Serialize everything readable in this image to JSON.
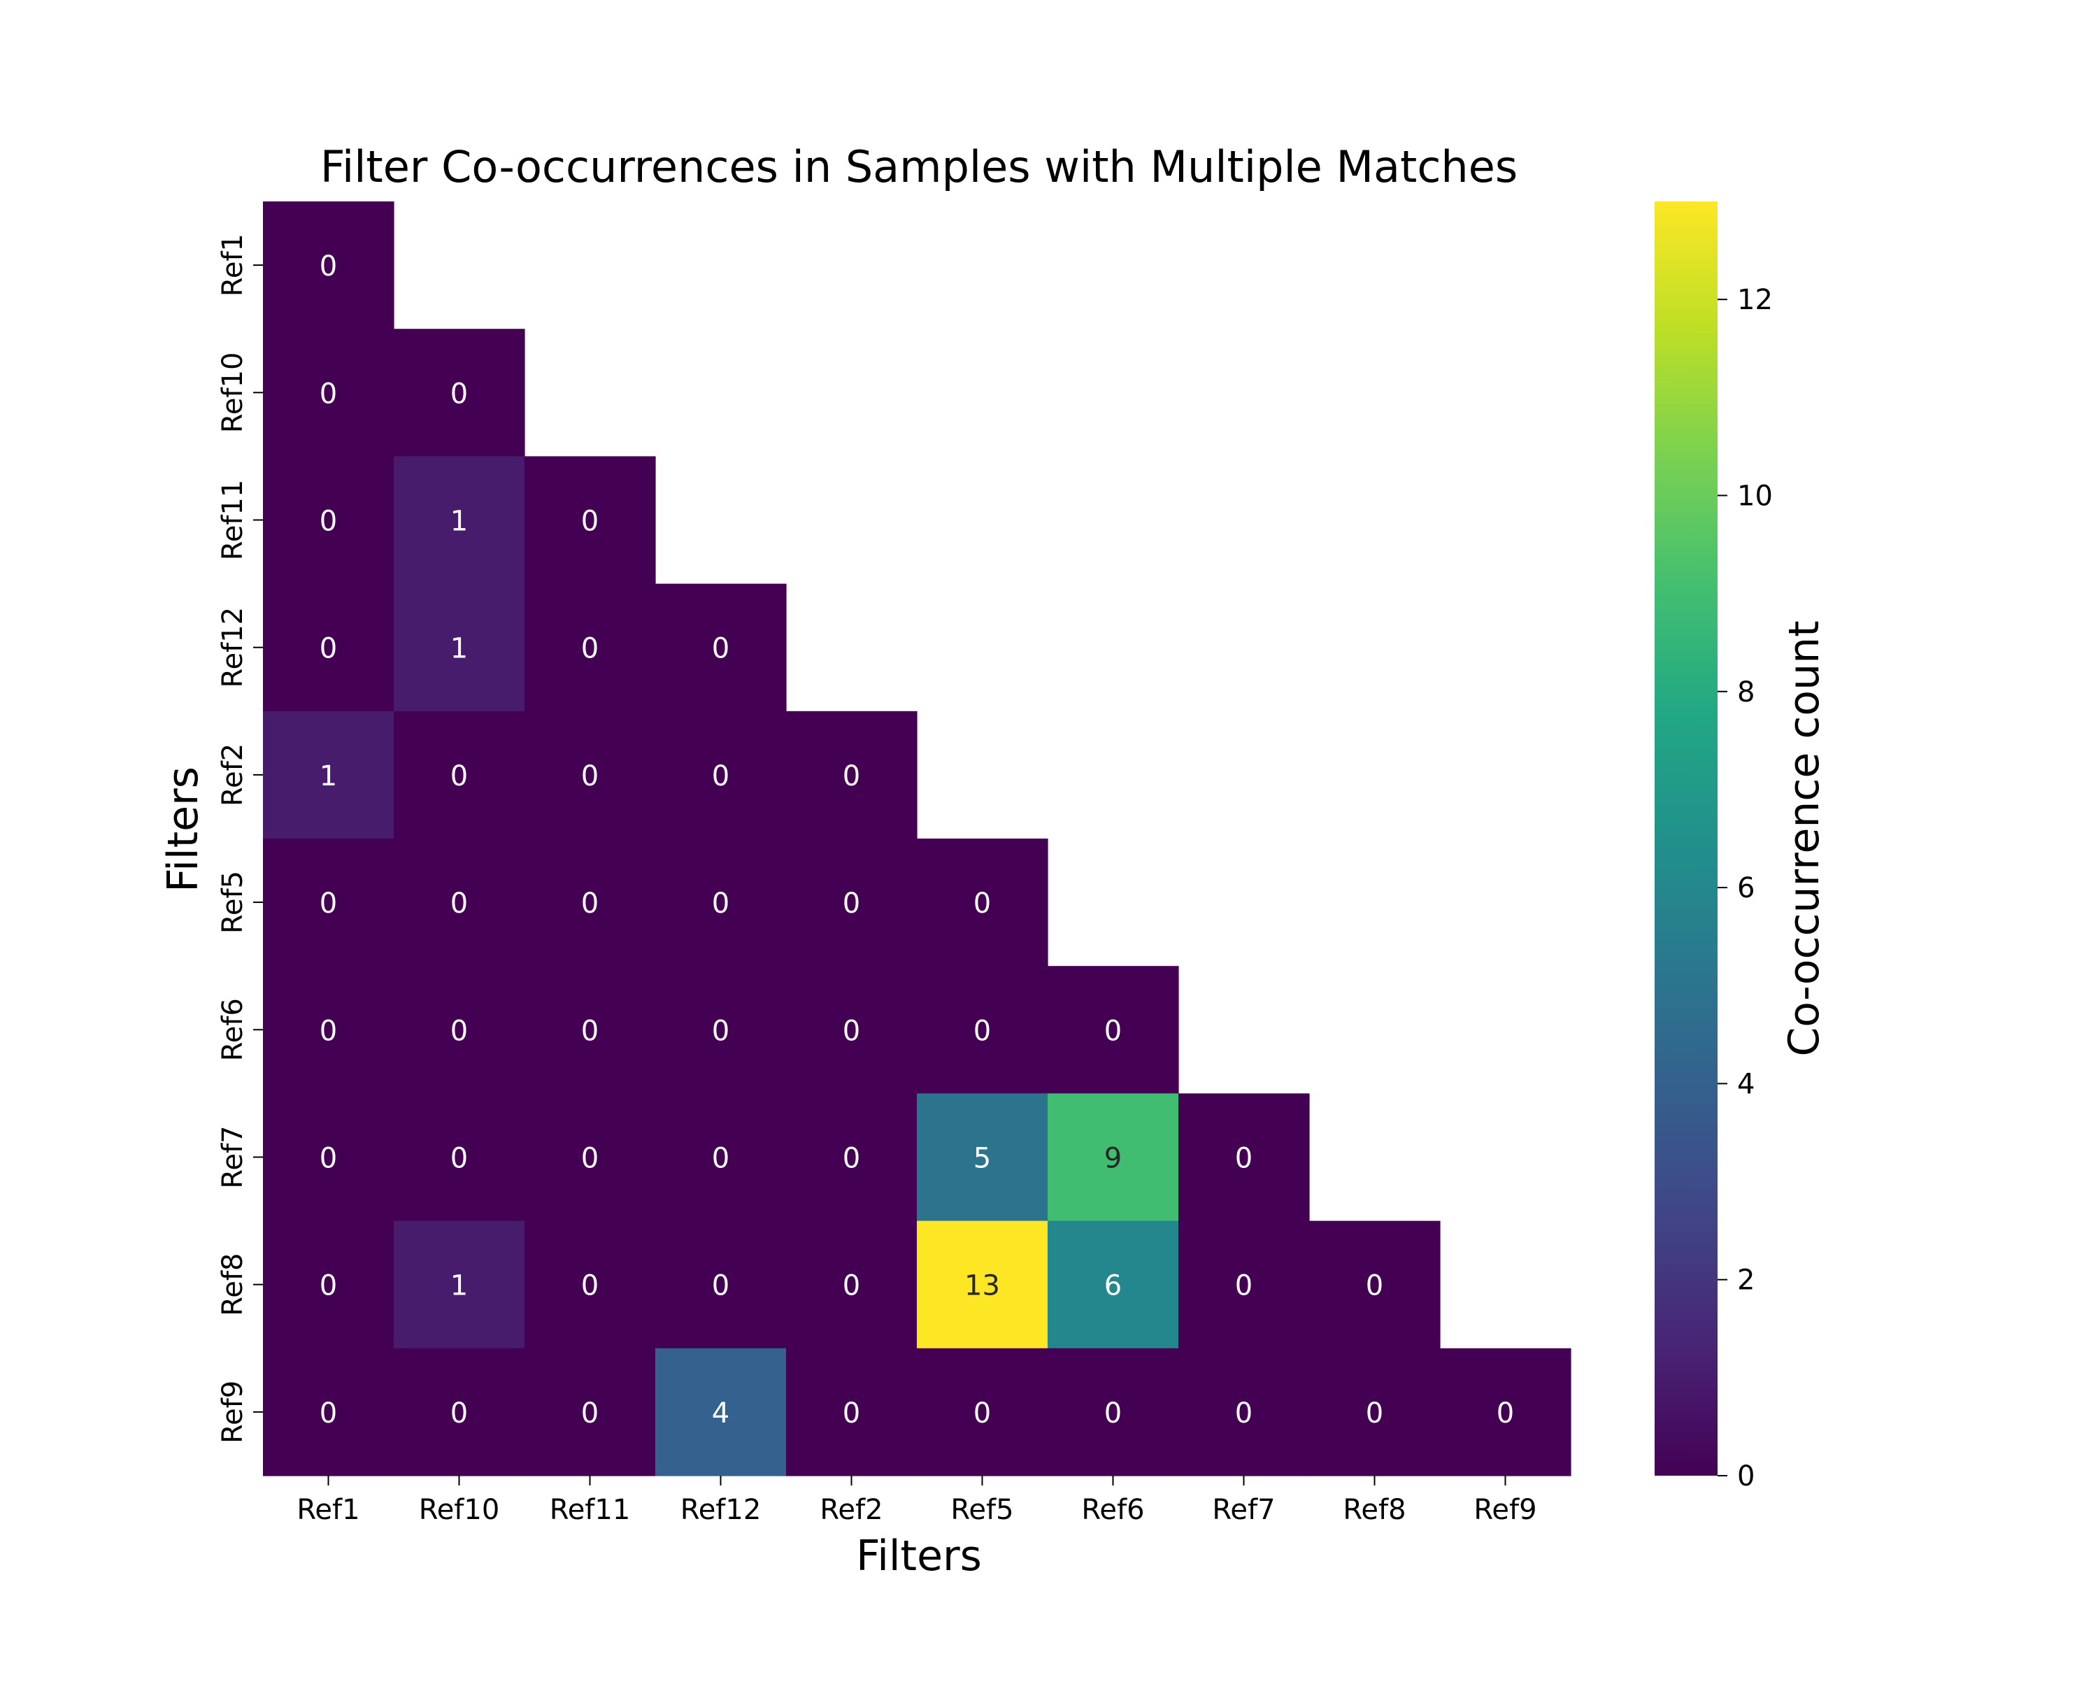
{
  "chart_data": {
    "type": "heatmap",
    "title": "Filter Co-occurrences in Samples with Multiple Matches",
    "xlabel": "Filters",
    "ylabel": "Filters",
    "x_categories": [
      "Ref1",
      "Ref10",
      "Ref11",
      "Ref12",
      "Ref2",
      "Ref5",
      "Ref6",
      "Ref7",
      "Ref8",
      "Ref9"
    ],
    "y_categories": [
      "Ref1",
      "Ref10",
      "Ref11",
      "Ref12",
      "Ref2",
      "Ref5",
      "Ref6",
      "Ref7",
      "Ref8",
      "Ref9"
    ],
    "values": [
      [
        0,
        null,
        null,
        null,
        null,
        null,
        null,
        null,
        null,
        null
      ],
      [
        0,
        0,
        null,
        null,
        null,
        null,
        null,
        null,
        null,
        null
      ],
      [
        0,
        1,
        0,
        null,
        null,
        null,
        null,
        null,
        null,
        null
      ],
      [
        0,
        1,
        0,
        0,
        null,
        null,
        null,
        null,
        null,
        null
      ],
      [
        1,
        0,
        0,
        0,
        0,
        null,
        null,
        null,
        null,
        null
      ],
      [
        0,
        0,
        0,
        0,
        0,
        0,
        null,
        null,
        null,
        null
      ],
      [
        0,
        0,
        0,
        0,
        0,
        0,
        0,
        null,
        null,
        null
      ],
      [
        0,
        0,
        0,
        0,
        0,
        5,
        9,
        0,
        null,
        null
      ],
      [
        0,
        1,
        0,
        0,
        0,
        13,
        6,
        0,
        0,
        null
      ],
      [
        0,
        0,
        0,
        4,
        0,
        0,
        0,
        0,
        0,
        0
      ]
    ],
    "mask": "upper triangle",
    "colormap": "viridis",
    "value_range": [
      0,
      13
    ],
    "colorbar": {
      "label": "Co-occurrence count",
      "ticks": [
        0,
        2,
        4,
        6,
        8,
        10,
        12
      ]
    },
    "annotations": true
  }
}
